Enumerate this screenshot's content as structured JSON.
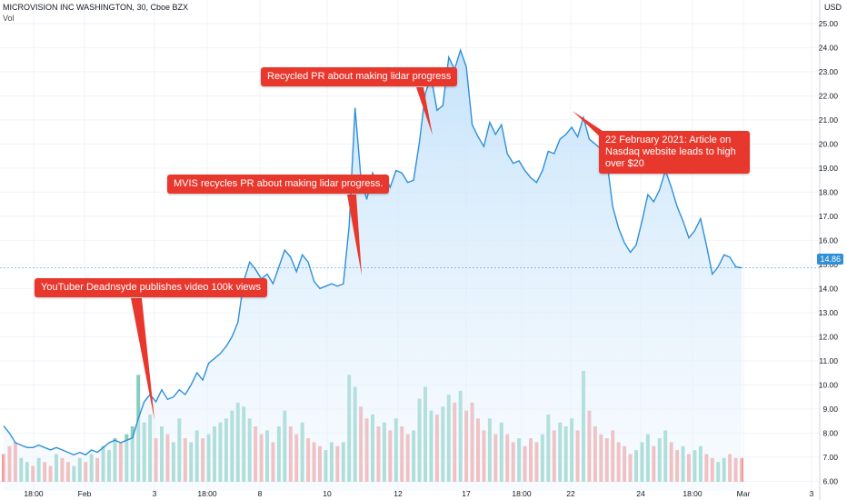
{
  "header": {
    "ticker": "MICROVISION INC WASHINGTON, 30, Cboe BZX",
    "vol_label": "Vol"
  },
  "currency_label": "USD",
  "last_price_label": "14.86",
  "annotations": [
    {
      "text": "YouTuber Deadnsyde publishes video 100k views"
    },
    {
      "text": "MVIS recycles PR about making lidar progress."
    },
    {
      "text": "Recycled PR about making lidar progress"
    },
    {
      "text": "22 February 2021: Article on Nasdaq website leads to high over $20"
    }
  ],
  "colors": {
    "line": "#2f8fd8",
    "area_top": "#bfe0fa",
    "vol_up": "#6cc5b4",
    "vol_down": "#f08a86",
    "annotation": "#e8382e",
    "grid": "#f0f3fa"
  },
  "chart_data": {
    "type": "area",
    "title": "MICROVISION INC WASHINGTON, 30, Cboe BZX",
    "ylabel": "USD",
    "ylim": [
      5.6,
      25.6
    ],
    "yticks": [
      "6.00",
      "7.00",
      "8.00",
      "9.00",
      "10.00",
      "11.00",
      "12.00",
      "13.00",
      "14.00",
      "15.00",
      "16.00",
      "17.00",
      "18.00",
      "19.00",
      "20.00",
      "21.00",
      "22.00",
      "23.00",
      "24.00",
      "25.00"
    ],
    "xticks": [
      "18:00",
      "Feb",
      "3",
      "18:00",
      "8",
      "10",
      "12",
      "17",
      "18:00",
      "22",
      "24",
      "18:00",
      "Mar",
      "3"
    ],
    "series": [
      {
        "values": [
          8.3,
          8.0,
          7.6,
          7.5,
          7.4,
          7.4,
          7.5,
          7.4,
          7.3,
          7.4,
          7.3,
          7.2,
          7.1,
          7.2,
          7.1,
          7.3,
          7.2,
          7.4,
          7.6,
          7.7,
          7.6,
          7.7,
          7.8,
          8.6,
          9.3,
          9.6,
          9.3,
          9.8,
          9.4,
          9.5,
          9.8,
          9.6,
          10.0,
          10.5,
          10.2,
          10.9,
          11.1,
          11.3,
          11.6,
          12.0,
          12.6,
          14.3,
          15.1,
          14.8,
          14.4,
          14.6,
          14.2,
          14.9,
          15.6,
          15.3,
          14.7,
          15.4,
          15.1,
          14.3,
          14.0,
          14.1,
          14.2,
          14.1,
          14.2,
          16.6,
          21.5,
          18.6,
          17.7,
          18.8,
          18.2,
          18.7,
          18.2,
          18.9,
          18.8,
          18.4,
          18.5,
          20.1,
          22.1,
          22.8,
          21.4,
          21.6,
          23.6,
          23.1,
          23.9,
          23.2,
          20.8,
          20.3,
          19.9,
          20.9,
          20.4,
          20.8,
          19.6,
          19.2,
          19.3,
          18.9,
          18.6,
          18.4,
          18.9,
          19.7,
          19.6,
          20.2,
          20.4,
          20.7,
          20.3,
          21.1,
          20.2,
          20.0,
          19.8,
          19.3,
          17.4,
          16.5,
          15.9,
          15.5,
          15.8,
          16.8,
          17.9,
          17.6,
          18.1,
          18.9,
          18.2,
          17.4,
          16.8,
          16.1,
          16.4,
          16.9,
          15.8,
          14.6,
          14.9,
          15.4,
          15.3,
          14.9,
          14.86
        ]
      }
    ],
    "volume": {
      "values": [
        0.35,
        0.45,
        0.5,
        0.3,
        0.25,
        0.2,
        0.3,
        0.25,
        0.2,
        0.35,
        0.3,
        0.25,
        0.2,
        0.3,
        0.25,
        0.35,
        0.3,
        0.45,
        0.4,
        0.55,
        0.5,
        0.6,
        0.7,
        1.35,
        0.75,
        0.85,
        0.55,
        0.7,
        0.6,
        0.5,
        0.8,
        0.55,
        0.5,
        0.65,
        0.55,
        0.6,
        0.7,
        0.75,
        0.8,
        0.9,
        1.0,
        0.95,
        0.8,
        0.7,
        0.6,
        0.65,
        0.5,
        0.7,
        0.9,
        0.7,
        0.6,
        0.75,
        0.55,
        0.5,
        0.45,
        0.4,
        0.5,
        0.45,
        0.5,
        1.35,
        1.2,
        0.95,
        0.8,
        0.85,
        0.7,
        0.75,
        0.65,
        0.8,
        0.7,
        0.6,
        0.65,
        1.05,
        1.2,
        0.9,
        0.85,
        0.95,
        1.1,
        1.0,
        1.15,
        0.9,
        1.0,
        0.8,
        0.65,
        0.8,
        0.6,
        0.75,
        0.6,
        0.5,
        0.55,
        0.45,
        0.55,
        0.5,
        0.6,
        0.85,
        0.65,
        0.75,
        0.7,
        0.8,
        0.65,
        1.4,
        0.9,
        0.7,
        0.6,
        0.55,
        0.65,
        0.5,
        0.45,
        0.35,
        0.4,
        0.5,
        0.6,
        0.45,
        0.55,
        0.65,
        0.5,
        0.4,
        0.45,
        0.35,
        0.4,
        0.45,
        0.35,
        0.3,
        0.25,
        0.3,
        0.35,
        0.3,
        0.3
      ],
      "up": [
        0,
        0,
        0,
        1,
        1,
        0,
        1,
        0,
        0,
        1,
        0,
        0,
        1,
        1,
        0,
        1,
        0,
        1,
        1,
        1,
        0,
        1,
        1,
        1,
        1,
        1,
        0,
        1,
        0,
        1,
        1,
        0,
        1,
        1,
        0,
        1,
        1,
        1,
        1,
        1,
        1,
        1,
        1,
        0,
        0,
        1,
        0,
        1,
        1,
        0,
        0,
        1,
        0,
        0,
        0,
        1,
        1,
        0,
        1,
        1,
        1,
        0,
        0,
        1,
        0,
        1,
        0,
        1,
        0,
        0,
        1,
        1,
        1,
        1,
        0,
        1,
        1,
        0,
        1,
        0,
        0,
        0,
        0,
        1,
        0,
        1,
        0,
        0,
        1,
        0,
        0,
        0,
        1,
        1,
        0,
        1,
        1,
        1,
        0,
        1,
        0,
        0,
        0,
        0,
        0,
        0,
        0,
        0,
        1,
        1,
        1,
        0,
        1,
        1,
        0,
        0,
        1,
        0,
        1,
        1,
        0,
        0,
        1,
        1,
        0,
        0,
        0
      ]
    },
    "grid": true
  }
}
